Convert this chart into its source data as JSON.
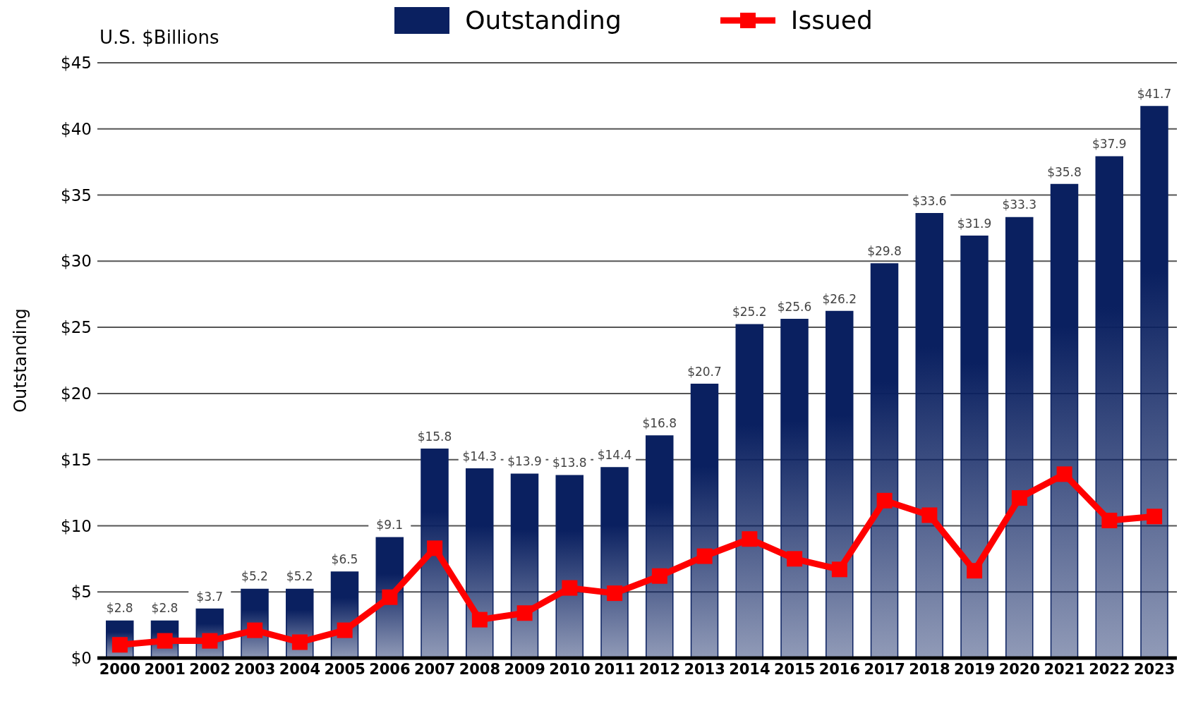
{
  "chart_data": {
    "type": "bar",
    "ylabel": "Outstanding",
    "annotations": [
      "U.S. $Billions"
    ],
    "categories": [
      "2000",
      "2001",
      "2002",
      "2003",
      "2004",
      "2005",
      "2006",
      "2007",
      "2008",
      "2009",
      "2010",
      "2011",
      "2012",
      "2013",
      "2014",
      "2015",
      "2016",
      "2017",
      "2018",
      "2019",
      "2020",
      "2021",
      "2022",
      "2023"
    ],
    "series": [
      {
        "name": "Outstanding",
        "color": "#0a2060",
        "values": [
          2.8,
          2.8,
          3.7,
          5.2,
          5.2,
          6.5,
          9.1,
          15.8,
          14.3,
          13.9,
          13.8,
          14.4,
          16.8,
          20.7,
          25.2,
          25.6,
          26.2,
          29.8,
          33.6,
          31.9,
          33.3,
          35.8,
          37.9,
          41.7
        ],
        "value_labels": [
          "$2.8",
          "$2.8",
          "$3.7",
          "$5.2",
          "$5.2",
          "$6.5",
          "$9.1",
          "$15.8",
          "$14.3",
          "$13.9",
          "$13.8",
          "$14.4",
          "$16.8",
          "$20.7",
          "$25.2",
          "$25.6",
          "$26.2",
          "$29.8",
          "$33.6",
          "$31.9",
          "$33.3",
          "$35.8",
          "$37.9",
          "$41.7"
        ]
      },
      {
        "name": "Issued",
        "type": "line",
        "color": "#ff0000",
        "marker": "square",
        "values": [
          1.0,
          1.3,
          1.3,
          2.1,
          1.2,
          2.1,
          4.6,
          8.3,
          2.9,
          3.4,
          5.3,
          4.9,
          6.2,
          7.7,
          9.0,
          7.5,
          6.7,
          11.9,
          10.8,
          6.6,
          12.1,
          13.9,
          10.4,
          10.7
        ]
      }
    ],
    "ylim": [
      0,
      45
    ],
    "yticks": [
      {
        "value": 0,
        "label": "$0"
      },
      {
        "value": 5,
        "label": "$5"
      },
      {
        "value": 10,
        "label": "$10"
      },
      {
        "value": 15,
        "label": "$15"
      },
      {
        "value": 20,
        "label": "$20"
      },
      {
        "value": 25,
        "label": "$25"
      },
      {
        "value": 30,
        "label": "$30"
      },
      {
        "value": 35,
        "label": "$35"
      },
      {
        "value": 40,
        "label": "$40"
      },
      {
        "value": 45,
        "label": "$45"
      }
    ],
    "grid": "y",
    "legend": "top"
  }
}
